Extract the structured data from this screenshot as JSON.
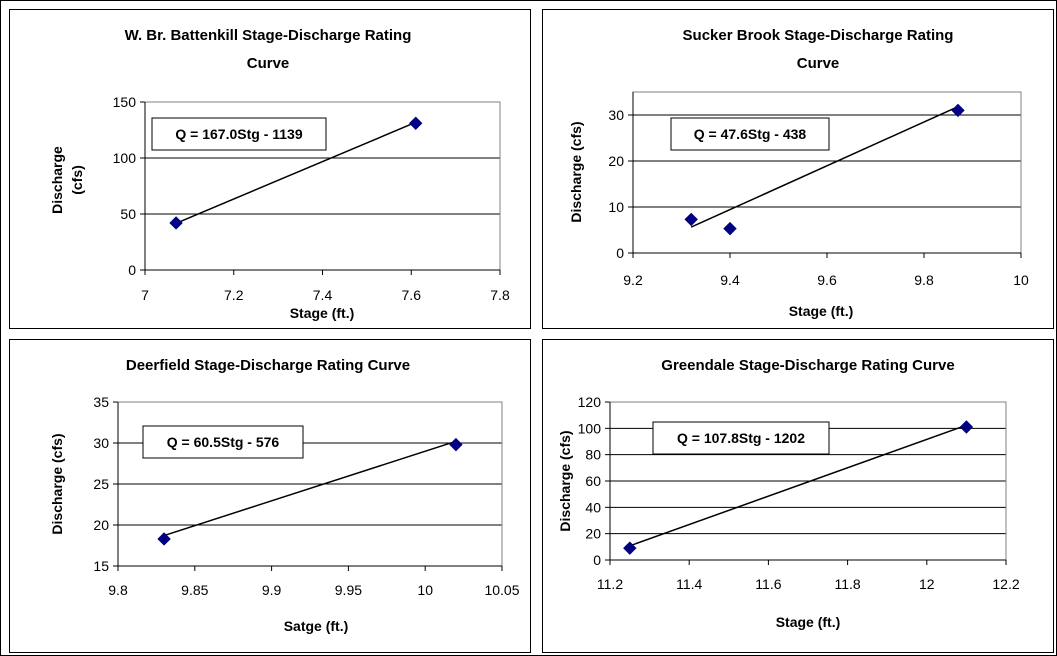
{
  "chart_data": [
    {
      "type": "scatter",
      "title": "W. Br. Battenkill Stage-Discharge Rating Curve",
      "xlabel": "Stage (ft.)",
      "ylabel": "Discharge (cfs)",
      "xlim": [
        7,
        7.8
      ],
      "ylim": [
        0,
        150
      ],
      "x_ticks": [
        "7",
        "7.2",
        "7.4",
        "7.6",
        "7.8"
      ],
      "y_ticks": [
        "0",
        "50",
        "100",
        "150"
      ],
      "grid": true,
      "annotation": "Q = 167.0Stg - 1139",
      "series": [
        {
          "points": [
            {
              "x": 7.07,
              "y": 42
            },
            {
              "x": 7.61,
              "y": 131
            }
          ]
        }
      ],
      "trendline": {
        "slope": 167.0,
        "intercept": -1139,
        "x_range": [
          7.07,
          7.61
        ]
      }
    },
    {
      "type": "scatter",
      "title": "Sucker Brook Stage-Discharge Rating Curve",
      "xlabel": "Stage (ft.)",
      "ylabel": "Discharge (cfs)",
      "xlim": [
        9.2,
        10
      ],
      "ylim": [
        0,
        35
      ],
      "x_ticks": [
        "9.2",
        "9.4",
        "9.6",
        "9.8",
        "10"
      ],
      "y_ticks": [
        "0",
        "10",
        "20",
        "30"
      ],
      "grid": true,
      "annotation": "Q = 47.6Stg - 438",
      "series": [
        {
          "points": [
            {
              "x": 9.32,
              "y": 7.3
            },
            {
              "x": 9.4,
              "y": 5.3
            },
            {
              "x": 9.87,
              "y": 31
            }
          ]
        }
      ],
      "trendline": {
        "slope": 47.6,
        "intercept": -438,
        "x_range": [
          9.32,
          9.87
        ]
      }
    },
    {
      "type": "scatter",
      "title": "Deerfield Stage-Discharge Rating Curve",
      "xlabel": "Satge (ft.)",
      "ylabel": "Discharge (cfs)",
      "xlim": [
        9.8,
        10.05
      ],
      "ylim": [
        15,
        35
      ],
      "x_ticks": [
        "9.8",
        "9.85",
        "9.9",
        "9.95",
        "10",
        "10.05"
      ],
      "y_ticks": [
        "15",
        "20",
        "25",
        "30",
        "35"
      ],
      "grid": true,
      "annotation": "Q = 60.5Stg - 576",
      "series": [
        {
          "points": [
            {
              "x": 9.83,
              "y": 18.3
            },
            {
              "x": 10.02,
              "y": 29.8
            }
          ]
        }
      ],
      "trendline": {
        "slope": 60.5,
        "intercept": -576,
        "x_range": [
          9.83,
          10.02
        ]
      }
    },
    {
      "type": "scatter",
      "title": "Greendale Stage-Discharge Rating Curve",
      "xlabel": "Stage (ft.)",
      "ylabel": "Discharge (cfs)",
      "xlim": [
        11.2,
        12.2
      ],
      "ylim": [
        0,
        120
      ],
      "x_ticks": [
        "11.2",
        "11.4",
        "11.6",
        "11.8",
        "12",
        "12.2"
      ],
      "y_ticks": [
        "0",
        "20",
        "40",
        "60",
        "80",
        "100",
        "120"
      ],
      "grid": true,
      "annotation": "Q = 107.8Stg - 1202",
      "series": [
        {
          "points": [
            {
              "x": 11.25,
              "y": 9
            },
            {
              "x": 12.1,
              "y": 101
            }
          ]
        }
      ],
      "trendline": {
        "slope": 107.8,
        "intercept": -1202,
        "x_range": [
          11.25,
          12.1
        ]
      }
    }
  ],
  "colors": {
    "marker": "#000080",
    "line": "#000000",
    "grid": "#000000"
  }
}
